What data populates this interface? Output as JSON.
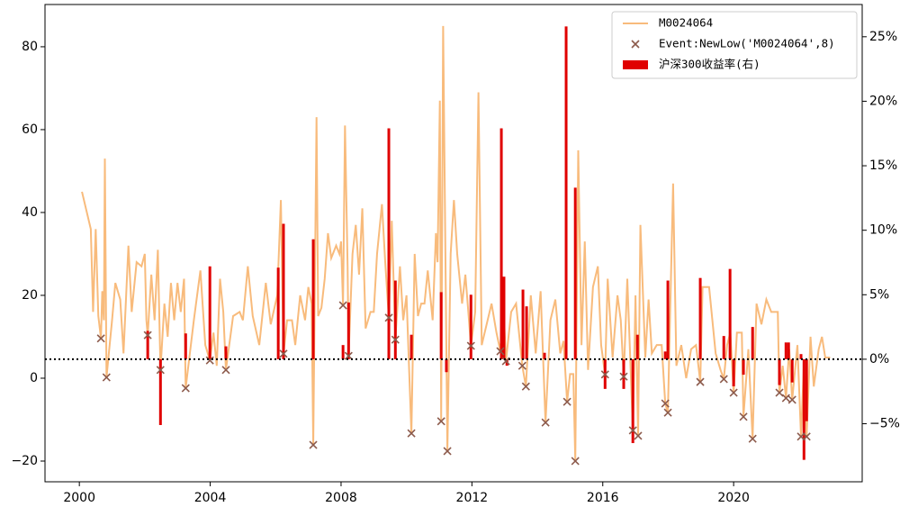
{
  "chart_data": {
    "type": "line",
    "xlim": [
      1998.95,
      2023.93
    ],
    "xticks": [
      2000,
      2004,
      2008,
      2012,
      2016,
      2020
    ],
    "ylim": [
      -25,
      90.2
    ],
    "yticks": [
      {
        "value": -20,
        "label": "−20"
      },
      0,
      20,
      40,
      60,
      80
    ],
    "y2lim": [
      -9.5,
      27.5
    ],
    "y2ticks": [
      {
        "value": -5,
        "label": "−5%"
      },
      {
        "value": 0,
        "label": "0%"
      },
      {
        "value": 5,
        "label": "5%"
      },
      {
        "value": 10,
        "label": "10%"
      },
      {
        "value": 15,
        "label": "15%"
      },
      {
        "value": 20,
        "label": "20%"
      },
      {
        "value": 25,
        "label": "25%"
      }
    ],
    "reference_line": {
      "axis": "y2",
      "value": 0,
      "style": "dotted",
      "color": "#000000"
    },
    "legend": "upper right",
    "series": [
      {
        "name": "M0024064",
        "type": "line",
        "color": "#f8bb7c",
        "x": [
          2000.08,
          2000.35,
          2000.42,
          2000.5,
          2000.58,
          2000.66,
          2000.7,
          2000.75,
          2000.78,
          2000.83,
          2001.0,
          2001.1,
          2001.25,
          2001.35,
          2001.5,
          2001.6,
          2001.75,
          2001.9,
          2002.0,
          2002.05,
          2002.09,
          2002.2,
          2002.3,
          2002.4,
          2002.48,
          2002.6,
          2002.7,
          2002.8,
          2002.9,
          2003.0,
          2003.1,
          2003.2,
          2003.25,
          2003.5,
          2003.7,
          2003.85,
          2003.99,
          2004.1,
          2004.2,
          2004.3,
          2004.4,
          2004.48,
          2004.7,
          2004.9,
          2005.0,
          2005.15,
          2005.3,
          2005.5,
          2005.7,
          2005.85,
          2006.05,
          2006.16,
          2006.24,
          2006.35,
          2006.5,
          2006.6,
          2006.75,
          2006.9,
          2007.0,
          2007.1,
          2007.15,
          2007.25,
          2007.3,
          2007.4,
          2007.5,
          2007.6,
          2007.7,
          2007.85,
          2007.95,
          2008.0,
          2008.06,
          2008.12,
          2008.2,
          2008.23,
          2008.35,
          2008.45,
          2008.55,
          2008.65,
          2008.75,
          2008.9,
          2009.0,
          2009.1,
          2009.25,
          2009.35,
          2009.46,
          2009.55,
          2009.66,
          2009.8,
          2009.9,
          2010.0,
          2010.15,
          2010.25,
          2010.35,
          2010.45,
          2010.55,
          2010.65,
          2010.8,
          2010.9,
          2010.95,
          2011.02,
          2011.06,
          2011.12,
          2011.25,
          2011.35,
          2011.45,
          2011.55,
          2011.7,
          2011.8,
          2011.9,
          2011.97,
          2012.1,
          2012.2,
          2012.3,
          2012.45,
          2012.6,
          2012.75,
          2012.87,
          2012.95,
          2013.04,
          2013.2,
          2013.35,
          2013.54,
          2013.65,
          2013.8,
          2013.95,
          2014.1,
          2014.25,
          2014.4,
          2014.55,
          2014.7,
          2014.8,
          2014.91,
          2015.0,
          2015.1,
          2015.16,
          2015.25,
          2015.35,
          2015.45,
          2015.55,
          2015.7,
          2015.85,
          2015.95,
          2016.07,
          2016.15,
          2016.3,
          2016.45,
          2016.55,
          2016.64,
          2016.75,
          2016.92,
          2017.0,
          2017.08,
          2017.15,
          2017.3,
          2017.4,
          2017.5,
          2017.65,
          2017.8,
          2017.91,
          2017.99,
          2018.15,
          2018.25,
          2018.4,
          2018.55,
          2018.7,
          2018.85,
          2018.98,
          2019.05,
          2019.25,
          2019.45,
          2019.6,
          2019.7,
          2019.8,
          2019.9,
          2020.0,
          2020.1,
          2020.25,
          2020.3,
          2020.45,
          2020.58,
          2020.7,
          2020.85,
          2021.0,
          2021.15,
          2021.35,
          2021.4,
          2021.5,
          2021.6,
          2021.7,
          2021.79,
          2021.95,
          2022.06,
          2022.15,
          2022.23,
          2022.35,
          2022.45,
          2022.6,
          2022.7,
          2022.8,
          2022.95
        ],
        "values": [
          45,
          36,
          16,
          36,
          15,
          9.6,
          21,
          14,
          53,
          0.2,
          14,
          23,
          19,
          6,
          32,
          16,
          28,
          27,
          30,
          14,
          10.4,
          25,
          14,
          31,
          2.0,
          18,
          10,
          23,
          14,
          23,
          16,
          24,
          -2.4,
          14,
          26,
          8,
          4.3,
          11,
          3,
          24,
          16,
          2.0,
          15,
          16,
          14,
          27,
          15,
          8,
          23,
          13,
          20,
          43,
          5.9,
          14,
          14,
          8,
          20,
          14,
          22,
          18,
          -16.1,
          63,
          15,
          17,
          24,
          35,
          29,
          32,
          30,
          33,
          17.6,
          61,
          27,
          5.4,
          30,
          37,
          25,
          41,
          12,
          16,
          16,
          30,
          42,
          28,
          14.6,
          38,
          9.3,
          27,
          14,
          20,
          -13.3,
          30,
          15,
          18,
          18,
          26,
          14,
          35,
          28,
          67,
          -10.4,
          85,
          -17.6,
          30,
          43,
          30,
          18,
          25,
          15,
          7.8,
          16,
          69,
          8,
          13,
          18,
          11,
          6.5,
          20,
          4.1,
          16,
          18,
          3.0,
          -2.0,
          20,
          6,
          21,
          -10.7,
          14,
          19,
          6,
          9,
          -5.7,
          1,
          1,
          -20,
          55,
          8,
          33,
          2,
          22,
          27,
          8,
          0.9,
          24,
          5,
          20,
          14,
          0.4,
          24,
          -12.6,
          20,
          -13.9,
          37,
          5,
          19,
          6,
          8,
          8,
          -6.1,
          -8.3,
          47,
          3,
          8,
          0,
          7,
          8,
          -0.9,
          22,
          22,
          6,
          2,
          -0.2,
          8,
          11,
          -3.5,
          11,
          11,
          -9.3,
          7,
          -14.6,
          18,
          13,
          19,
          16,
          16,
          -3.5,
          3,
          -4.8,
          7,
          -5.2,
          8,
          -14.1,
          4,
          -14.1,
          10,
          -2,
          7,
          10,
          5,
          5
        ]
      },
      {
        "name": "Event:NewLow('M0024064',8)",
        "type": "scatter",
        "color": "#8c5a4b",
        "marker": "x",
        "x": [
          2000.66,
          2000.83,
          2002.09,
          2002.48,
          2003.25,
          2003.99,
          2004.48,
          2006.24,
          2007.15,
          2008.06,
          2008.23,
          2009.46,
          2009.66,
          2010.15,
          2011.06,
          2011.25,
          2011.97,
          2012.87,
          2013.04,
          2013.54,
          2013.65,
          2014.25,
          2014.91,
          2015.16,
          2016.07,
          2016.64,
          2016.92,
          2017.08,
          2017.91,
          2017.99,
          2018.98,
          2019.7,
          2020.0,
          2020.3,
          2020.58,
          2021.4,
          2021.6,
          2021.79,
          2022.06,
          2022.23
        ],
        "values": [
          9.6,
          0.2,
          10.4,
          2.0,
          -2.4,
          4.3,
          2.0,
          5.9,
          -16.1,
          17.6,
          5.4,
          14.6,
          9.3,
          -13.3,
          -10.4,
          -17.6,
          7.8,
          6.5,
          4.1,
          3.0,
          -2.0,
          -10.7,
          -5.7,
          -20,
          0.9,
          0.4,
          -12.6,
          -13.9,
          -6.1,
          -8.3,
          -0.9,
          -0.2,
          -3.5,
          -9.3,
          -14.6,
          -3.5,
          -4.8,
          -5.2,
          -14.1,
          -14.1
        ]
      },
      {
        "name": "沪深300收益率(右)",
        "type": "bar",
        "color": "#e00000",
        "axis": "y2",
        "x": [
          2002.09,
          2002.48,
          2003.25,
          2003.99,
          2004.48,
          2006.08,
          2006.24,
          2007.15,
          2008.06,
          2008.23,
          2009.46,
          2009.66,
          2010.15,
          2011.06,
          2011.22,
          2011.97,
          2012.9,
          2012.98,
          2013.07,
          2013.56,
          2013.67,
          2014.22,
          2014.88,
          2015.16,
          2016.07,
          2016.64,
          2016.92,
          2017.06,
          2017.91,
          2017.99,
          2018.98,
          2019.7,
          2019.89,
          2020.0,
          2020.3,
          2020.58,
          2021.4,
          2021.6,
          2021.68,
          2021.79,
          2022.06,
          2022.15,
          2022.23
        ],
        "values": [
          2.2,
          -5.1,
          2.0,
          7.2,
          1.0,
          7.1,
          10.5,
          9.3,
          1.1,
          4.4,
          17.9,
          6.1,
          1.9,
          5.2,
          -1.0,
          5.0,
          17.9,
          6.4,
          -0.5,
          5.4,
          4.1,
          0.5,
          25.8,
          13.3,
          -2.3,
          -2.3,
          -6.5,
          1.9,
          0.6,
          6.1,
          6.3,
          1.8,
          7.0,
          -2.1,
          -1.2,
          2.5,
          -2.0,
          1.3,
          1.3,
          -1.8,
          0.4,
          -7.8,
          -4.8
        ]
      }
    ]
  }
}
